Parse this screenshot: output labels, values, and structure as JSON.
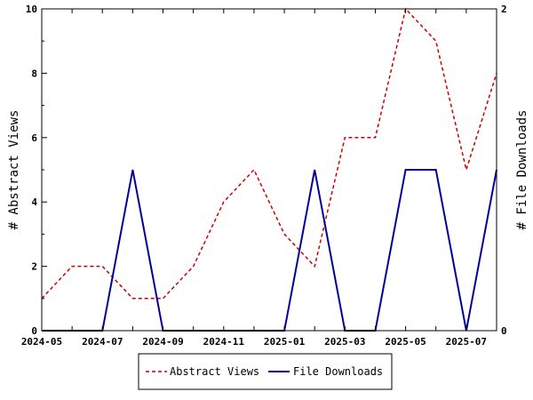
{
  "chart_data": {
    "type": "line",
    "x": [
      "2024-05",
      "2024-06",
      "2024-07",
      "2024-08",
      "2024-09",
      "2024-10",
      "2024-11",
      "2024-12",
      "2025-01",
      "2025-02",
      "2025-03",
      "2025-04",
      "2025-05",
      "2025-06",
      "2025-07",
      "2025-08"
    ],
    "x_tick_labels": [
      "2024-05",
      "2024-07",
      "2024-09",
      "2024-11",
      "2025-01",
      "2025-03",
      "2025-05",
      "2025-07"
    ],
    "series": [
      {
        "name": "Abstract Views",
        "axis": "left",
        "color": "#cc0000",
        "dash": "dashed",
        "values": [
          1,
          2,
          2,
          1,
          1,
          2,
          4,
          5,
          3,
          2,
          6,
          6,
          10,
          9,
          5,
          8
        ]
      },
      {
        "name": "File Downloads",
        "axis": "right",
        "color": "#000099",
        "dash": "solid",
        "values": [
          0,
          0,
          0,
          1,
          0,
          0,
          0,
          0,
          0,
          1,
          0,
          0,
          1,
          1,
          0,
          1
        ]
      }
    ],
    "ylabel": "# Abstract Views",
    "ylabel_right": "# File Downloads",
    "ylim": [
      0,
      10
    ],
    "y_ticks": [
      0,
      2,
      4,
      6,
      8,
      10
    ],
    "ylim_right": [
      0,
      2
    ],
    "y_ticks_right": [
      0,
      2
    ],
    "grid": false,
    "legend": "bottom"
  }
}
